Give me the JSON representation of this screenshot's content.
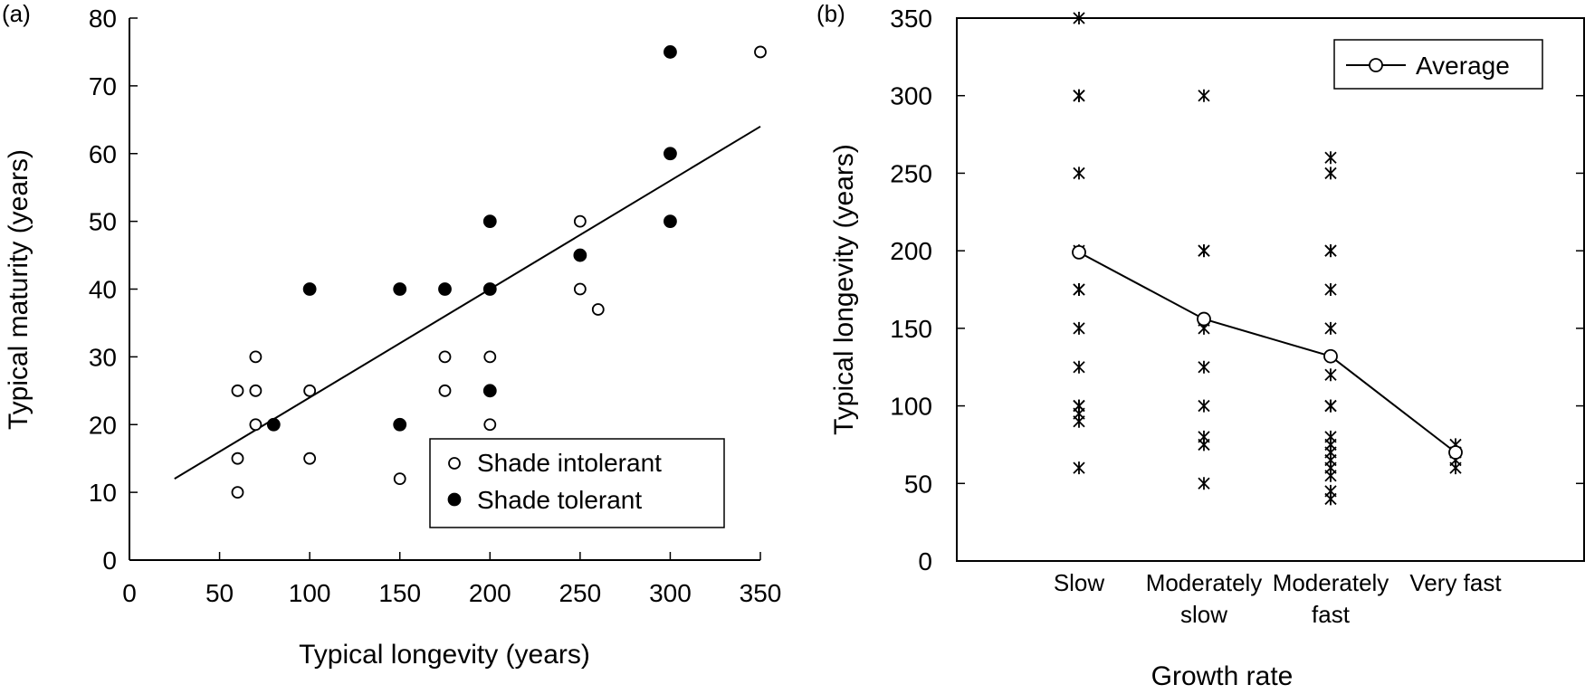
{
  "chart_data": [
    {
      "panel_label": "(a)",
      "type": "scatter",
      "xlabel": "Typical longevity (years)",
      "ylabel": "Typical maturity (years)",
      "xlim": [
        0,
        350
      ],
      "ylim": [
        0,
        80
      ],
      "xticks": [
        0,
        50,
        100,
        150,
        200,
        250,
        300,
        350
      ],
      "yticks": [
        0,
        10,
        20,
        30,
        40,
        50,
        60,
        70,
        80
      ],
      "legend_position": "bottom-right",
      "series": [
        {
          "name": "Shade intolerant",
          "marker": "open-circle",
          "points": [
            [
              60,
              25
            ],
            [
              60,
              15
            ],
            [
              60,
              10
            ],
            [
              70,
              30
            ],
            [
              70,
              25
            ],
            [
              70,
              20
            ],
            [
              100,
              25
            ],
            [
              100,
              15
            ],
            [
              150,
              12
            ],
            [
              175,
              30
            ],
            [
              175,
              25
            ],
            [
              200,
              30
            ],
            [
              200,
              20
            ],
            [
              250,
              50
            ],
            [
              250,
              40
            ],
            [
              260,
              37
            ],
            [
              350,
              75
            ]
          ]
        },
        {
          "name": "Shade tolerant",
          "marker": "filled-circle",
          "points": [
            [
              80,
              20
            ],
            [
              100,
              40
            ],
            [
              150,
              40
            ],
            [
              150,
              20
            ],
            [
              175,
              40
            ],
            [
              200,
              50
            ],
            [
              200,
              40
            ],
            [
              200,
              25
            ],
            [
              250,
              45
            ],
            [
              300,
              75
            ],
            [
              300,
              60
            ],
            [
              300,
              50
            ]
          ]
        }
      ],
      "regression_line": {
        "x": [
          25,
          350
        ],
        "y": [
          12,
          64
        ]
      }
    },
    {
      "panel_label": "(b)",
      "type": "scatter",
      "xlabel": "Growth rate",
      "ylabel": "Typical longevity (years)",
      "ylim": [
        0,
        350
      ],
      "yticks": [
        0,
        50,
        100,
        150,
        200,
        250,
        300,
        350
      ],
      "categories": [
        {
          "line1": "Slow",
          "line2": ""
        },
        {
          "line1": "Moderately",
          "line2": "slow"
        },
        {
          "line1": "Moderately",
          "line2": "fast"
        },
        {
          "line1": "Very fast",
          "line2": ""
        }
      ],
      "legend_position": "top-right",
      "individual_values": [
        [
          350,
          300,
          300,
          250,
          200,
          175,
          175,
          150,
          125,
          100,
          100,
          95,
          90,
          60
        ],
        [
          300,
          200,
          200,
          155,
          150,
          125,
          100,
          80,
          75,
          50
        ],
        [
          260,
          250,
          200,
          200,
          175,
          150,
          120,
          100,
          100,
          80,
          75,
          70,
          65,
          60,
          55,
          45,
          40
        ],
        [
          75,
          70,
          65,
          60
        ]
      ],
      "series": [
        {
          "name": "Average",
          "marker": "open-circle-line",
          "values": [
            199,
            156,
            132,
            70
          ]
        }
      ]
    }
  ],
  "colors": {
    "ink": "#000000",
    "background": "#ffffff"
  }
}
